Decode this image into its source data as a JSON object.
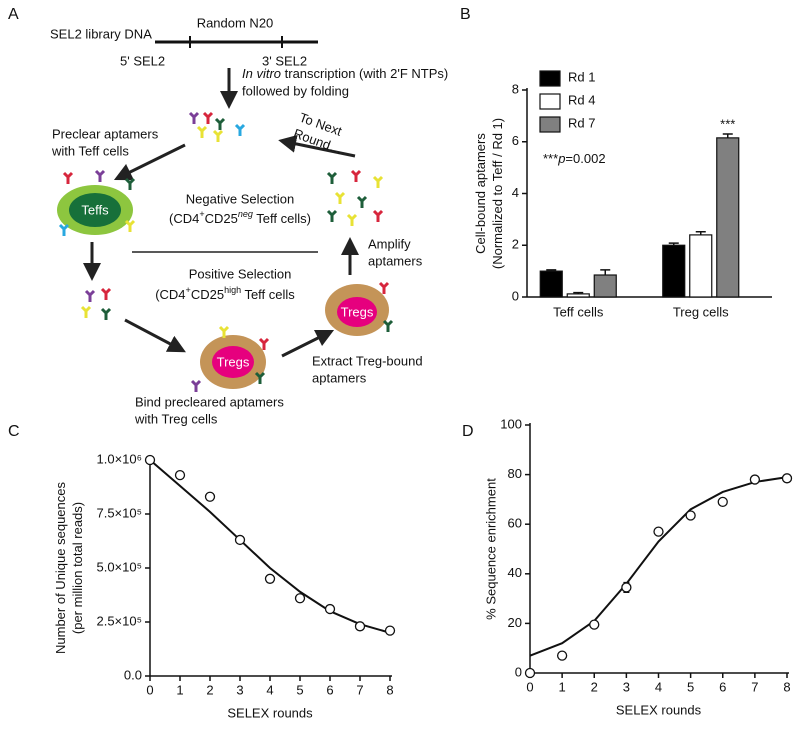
{
  "panels": [
    "A",
    "B",
    "C",
    "D"
  ],
  "diagram": {
    "library": "SEL2 library DNA",
    "random": "Random N20",
    "five": "5' SEL2",
    "three": "3' SEL2",
    "invitro": "In vitro",
    "transcription": " transcription (with 2'F NTPs)",
    "folding": "followed by folding",
    "preclear": [
      "Preclear aptamers",
      "with Teff cells"
    ],
    "next": [
      "To Next",
      "Round…"
    ],
    "teffs": "Teffs",
    "negative": "Negative Selection",
    "neg_line": [
      "(CD4",
      "+",
      "CD25",
      "neg",
      " Teff cells)"
    ],
    "positive": "Positive Selection",
    "pos_line": [
      "(CD4",
      "+",
      "CD25",
      "high",
      " Teff cells"
    ],
    "amplify": [
      "Amplify",
      "aptamers"
    ],
    "tregs": "Tregs",
    "extract": [
      "Extract Treg-bound",
      "aptamers"
    ],
    "bind": [
      "Bind precleared aptamers",
      "with Treg cells"
    ]
  },
  "chart_data": [
    {
      "type": "bar",
      "ylabel": [
        "Cell-bound aptamers",
        "(Normalized to Teff / Rd 1)"
      ],
      "categories": [
        "Teff cells",
        "Treg cells"
      ],
      "series": [
        {
          "name": "Rd 1",
          "color": "#000000",
          "values": [
            1.0,
            2.0
          ],
          "errors": [
            0.05,
            0.08
          ]
        },
        {
          "name": "Rd 4",
          "color": "#ffffff",
          "values": [
            0.12,
            2.4
          ],
          "errors": [
            0.05,
            0.12
          ]
        },
        {
          "name": "Rd 7",
          "color": "#808080",
          "values": [
            0.85,
            6.15
          ],
          "errors": [
            0.2,
            0.15
          ]
        }
      ],
      "ylim": [
        0,
        8
      ],
      "yticks": [
        0,
        2,
        4,
        6,
        8
      ],
      "annotation": "***",
      "note": [
        "***",
        "p",
        "=0.002"
      ]
    },
    {
      "type": "scatter",
      "xlabel": "SELEX rounds",
      "ylabel": [
        "Number of Unique sequences",
        "(per million total reads)"
      ],
      "x": [
        0,
        1,
        2,
        3,
        4,
        5,
        6,
        7,
        8
      ],
      "y": [
        1000000,
        930000,
        830000,
        630000,
        450000,
        360000,
        310000,
        230000,
        210000
      ],
      "errors": [
        null,
        null,
        null,
        null,
        null,
        null,
        null,
        null,
        null
      ],
      "fit": {
        "x": [
          0,
          1,
          2,
          3,
          4,
          5,
          6,
          7,
          8
        ],
        "y": [
          1000000,
          880000,
          760000,
          630000,
          500000,
          390000,
          300000,
          240000,
          200000
        ]
      },
      "xlim": [
        0,
        8
      ],
      "xticks": [
        0,
        1,
        2,
        3,
        4,
        5,
        6,
        7,
        8
      ],
      "ylim": [
        0,
        1000000
      ],
      "yticks": [
        {
          "value": 0,
          "label": "0.0"
        },
        {
          "value": 250000,
          "label": "2.5×10⁵"
        },
        {
          "value": 500000,
          "label": "5.0×10⁵"
        },
        {
          "value": 750000,
          "label": "7.5×10⁵"
        },
        {
          "value": 1000000,
          "label": "1.0×10⁶"
        }
      ]
    },
    {
      "type": "scatter",
      "xlabel": "SELEX rounds",
      "ylabel": [
        "% Sequence enrichment"
      ],
      "x": [
        0,
        1,
        2,
        3,
        4,
        5,
        6,
        7,
        8
      ],
      "y": [
        0,
        7,
        19.5,
        34.5,
        57,
        63.5,
        69,
        78,
        78.5
      ],
      "errors": [
        null,
        null,
        null,
        2,
        null,
        null,
        null,
        null,
        null
      ],
      "fit": {
        "x": [
          0,
          1,
          2,
          3,
          4,
          5,
          6,
          7,
          8
        ],
        "y": [
          7,
          12,
          21,
          36,
          53,
          66,
          73,
          77,
          79
        ]
      },
      "xlim": [
        0,
        8
      ],
      "xticks": [
        0,
        1,
        2,
        3,
        4,
        5,
        6,
        7,
        8
      ],
      "ylim": [
        0,
        100
      ],
      "yticks": [
        0,
        20,
        40,
        60,
        80,
        100
      ]
    }
  ]
}
